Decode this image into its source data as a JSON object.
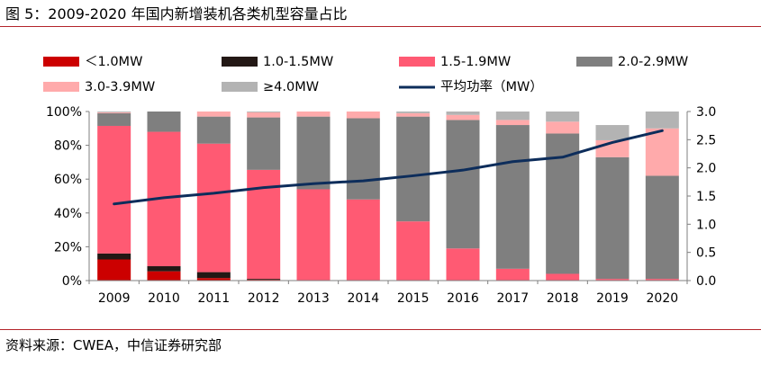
{
  "figure": {
    "title": "图 5：2009-2020 年国内新增装机各类机型容量占比",
    "source": "资料来源：CWEA，中信证券研究部"
  },
  "chart_data": {
    "type": "bar",
    "stacked": true,
    "categories": [
      "2009",
      "2010",
      "2011",
      "2012",
      "2013",
      "2014",
      "2015",
      "2016",
      "2017",
      "2018",
      "2019",
      "2020"
    ],
    "series": [
      {
        "name": "＜1.0MW",
        "color": "#cc0000",
        "values": [
          12.5,
          5.5,
          1.5,
          0.5,
          0,
          0,
          0,
          0,
          0,
          0,
          0,
          0
        ]
      },
      {
        "name": "1.0-1.5MW",
        "color": "#231815",
        "values": [
          3.5,
          3,
          3.5,
          0.5,
          0,
          0,
          0,
          0,
          0,
          0,
          0,
          0
        ]
      },
      {
        "name": "1.5-1.9MW",
        "color": "#ff5a73",
        "values": [
          75.5,
          79.5,
          76,
          64.5,
          54,
          48,
          35,
          19,
          7,
          4,
          1,
          1
        ]
      },
      {
        "name": "2.0-2.9MW",
        "color": "#7f7f7f",
        "values": [
          7.5,
          12,
          16,
          31,
          43,
          48,
          62,
          76,
          85,
          83,
          72,
          61
        ]
      },
      {
        "name": "3.0-3.9MW",
        "color": "#ffaaab",
        "values": [
          0.5,
          0,
          3,
          3,
          3,
          4,
          2,
          3,
          3,
          7,
          10,
          28
        ]
      },
      {
        "name": "≥4.0MW",
        "color": "#b3b3b3",
        "values": [
          0.5,
          0,
          0,
          0.5,
          0,
          0,
          1,
          2,
          5,
          6,
          9,
          10
        ]
      }
    ],
    "line_series": {
      "name": "平均功率（MW）",
      "color": "#0d2d5b",
      "axis": "right",
      "values": [
        1.36,
        1.47,
        1.55,
        1.65,
        1.72,
        1.77,
        1.86,
        1.96,
        2.11,
        2.19,
        2.45,
        2.66
      ]
    },
    "y_left": {
      "ylim": [
        0,
        100
      ],
      "ticks": [
        "0%",
        "20%",
        "40%",
        "60%",
        "80%",
        "100%"
      ]
    },
    "y_right": {
      "ylim": [
        0,
        3.0
      ],
      "ticks": [
        "0.0",
        "0.5",
        "1.0",
        "1.5",
        "2.0",
        "2.5",
        "3.0"
      ]
    },
    "grid": false,
    "legend_placement": "top"
  }
}
